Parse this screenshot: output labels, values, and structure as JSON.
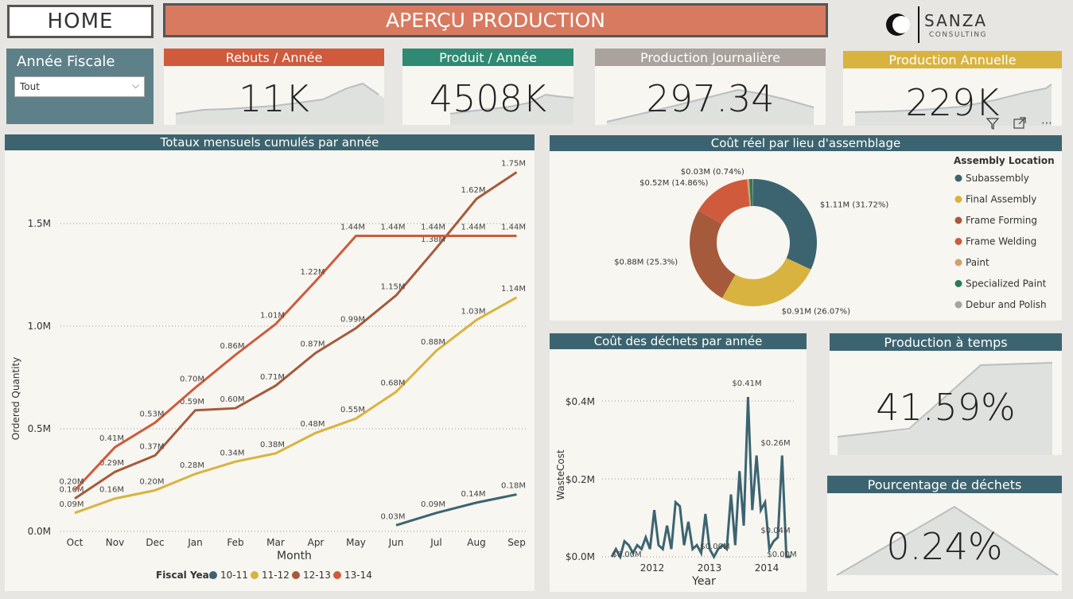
{
  "home_label": "HOME",
  "page_title": "APERÇU PRODUCTION",
  "logo": {
    "name": "SANZA",
    "sub": "CONSULTING"
  },
  "filter": {
    "label": "Année Fiscale",
    "selected": "Tout"
  },
  "kpis": [
    {
      "title": "Rebuts / Année",
      "value": "11K",
      "color": "#cf5a3c"
    },
    {
      "title": "Produit / Année",
      "value": "4508K",
      "color": "#2f8a73"
    },
    {
      "title": "Production Journalière",
      "value": "297.34",
      "color": "#a9a29d"
    },
    {
      "title": "Production Annuelle",
      "value": "229K",
      "color": "#d8b33f"
    }
  ],
  "line_panel": {
    "title": "Totaux mensuels cumulés par année",
    "xlabel": "Month",
    "ylabel": "Ordered Quantity",
    "legend_title": "Fiscal Year",
    "y_ticks": [
      "1.5M",
      "1.0M",
      "0.5M",
      "0.0M"
    ]
  },
  "donut_panel": {
    "title": "Coût réel par lieu d'assemblage",
    "legend_title": "Assembly Location"
  },
  "waste_panel": {
    "title": "Coût des déchets par année",
    "xlabel": "Year",
    "ylabel": "WasteCost",
    "y_ticks": [
      "$0.4M",
      "$0.2M",
      "$0.0M"
    ],
    "x_ticks": [
      "2012",
      "2013",
      "2014"
    ]
  },
  "ontime_panel": {
    "title": "Production à temps",
    "value": "41.59%"
  },
  "waste_pct_panel": {
    "title": "Pourcentage de déchets",
    "value": "0.24%"
  },
  "chart_data": [
    {
      "type": "line",
      "title": "Totaux mensuels cumulés par année",
      "xlabel": "Month",
      "ylabel": "Ordered Quantity",
      "categories": [
        "Oct",
        "Nov",
        "Dec",
        "Jan",
        "Feb",
        "Mar",
        "Apr",
        "May",
        "Jun",
        "Jul",
        "Aug",
        "Sep"
      ],
      "ylim": [
        0,
        1.8
      ],
      "series": [
        {
          "name": "10-11",
          "color": "#3c6470",
          "values": [
            null,
            null,
            null,
            null,
            null,
            null,
            null,
            null,
            0.03,
            0.09,
            0.14,
            0.18
          ],
          "labels": [
            null,
            null,
            null,
            null,
            null,
            null,
            null,
            null,
            "0.03M",
            "0.09M",
            "0.14M",
            "0.18M"
          ]
        },
        {
          "name": "11-12",
          "color": "#d8b33f",
          "values": [
            0.09,
            0.16,
            0.2,
            0.28,
            0.34,
            0.38,
            0.48,
            0.55,
            0.68,
            0.88,
            1.03,
            1.14
          ],
          "labels": [
            "0.09M",
            "0.16M",
            "0.20M",
            "0.28M",
            "0.34M",
            "0.38M",
            "0.48M",
            "0.55M",
            "0.68M",
            "0.88M",
            "1.03M",
            "1.14M"
          ]
        },
        {
          "name": "12-13",
          "color": "#a65a3c",
          "values": [
            0.16,
            0.29,
            0.37,
            0.59,
            0.6,
            0.71,
            0.87,
            0.99,
            1.15,
            1.38,
            1.62,
            1.75
          ],
          "labels": [
            "0.16M",
            "0.29M",
            "0.37M",
            "0.59M",
            "0.60M",
            "0.71M",
            "0.87M",
            "0.99M",
            "1.15M",
            "1.38M",
            "1.62M",
            "1.75M"
          ]
        },
        {
          "name": "13-14",
          "color": "#cf5a3c",
          "values": [
            0.2,
            0.41,
            0.53,
            0.7,
            0.86,
            1.01,
            1.22,
            1.44,
            1.44,
            1.44,
            1.44,
            1.44
          ],
          "labels": [
            "0.20M",
            "0.41M",
            "0.53M",
            "0.70M",
            "0.86M",
            "1.01M",
            "1.22M",
            "1.44M",
            "1.44M",
            "1.44M",
            "1.44M",
            "1.44M"
          ]
        }
      ]
    },
    {
      "type": "pie",
      "title": "Coût réel par lieu d'assemblage",
      "slices": [
        {
          "name": "Subassembly",
          "value": 1.11,
          "label": "$1.11M (31.72%)",
          "color": "#3c6470"
        },
        {
          "name": "Final Assembly",
          "value": 0.91,
          "label": "$0.91M (26.07%)",
          "color": "#d8b33f"
        },
        {
          "name": "Frame Forming",
          "value": 0.88,
          "label": "$0.88M (25.3%)",
          "color": "#a65a3c"
        },
        {
          "name": "Frame Welding",
          "value": 0.52,
          "label": "$0.52M (14.86%)",
          "color": "#cf5a3c"
        },
        {
          "name": "Paint",
          "value": 0.02,
          "label": "",
          "color": "#d2a06e"
        },
        {
          "name": "Specialized Paint",
          "value": 0.03,
          "label": "$0.03M (0.74%)",
          "color": "#2a7a5a"
        },
        {
          "name": "Debur and Polish",
          "value": 0.005,
          "label": "",
          "color": "#a9a29d"
        }
      ]
    },
    {
      "type": "line",
      "title": "Coût des déchets par année",
      "xlabel": "Year",
      "ylabel": "WasteCost",
      "ylim": [
        0,
        0.45
      ],
      "series": [
        {
          "name": "WasteCost",
          "color": "#3c6470",
          "values": [
            0.0,
            0.02,
            0.0,
            0.04,
            0.03,
            0.01,
            0.03,
            0.02,
            0.05,
            0.02,
            0.12,
            0.03,
            0.02,
            0.08,
            0.02,
            0.14,
            0.13,
            0.03,
            0.09,
            0.02,
            0.03,
            0.01,
            0.11,
            0.02,
            0.0,
            0.02,
            0.03,
            0.02,
            0.16,
            0.03,
            0.22,
            0.08,
            0.41,
            0.12,
            0.26,
            0.12,
            0.14,
            0.02,
            0.04,
            0.05,
            0.26,
            0.0,
            0.0
          ]
        }
      ],
      "point_labels": [
        "$0.00M",
        "$0.00M",
        "$0.41M",
        "$0.26M",
        "$0.04M",
        "$0.00M"
      ]
    }
  ]
}
